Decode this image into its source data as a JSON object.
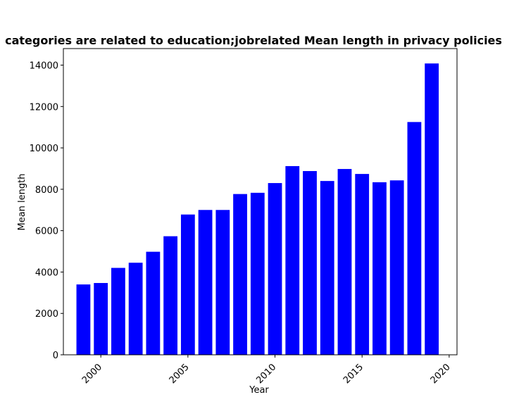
{
  "chart_data": {
    "type": "bar",
    "title": "categories are related to education;jobrelated Mean length in privacy policies",
    "xlabel": "Year",
    "ylabel": "Mean length",
    "bar_color": "#0000ff",
    "x": [
      1999,
      2000,
      2001,
      2002,
      2003,
      2004,
      2005,
      2006,
      2007,
      2008,
      2009,
      2010,
      2011,
      2012,
      2013,
      2014,
      2015,
      2016,
      2017,
      2018,
      2019
    ],
    "values": [
      3400,
      3470,
      4200,
      4450,
      4980,
      5730,
      6780,
      7000,
      7000,
      7770,
      7830,
      8300,
      9120,
      8880,
      8400,
      8980,
      8740,
      8340,
      8430,
      11250,
      14080
    ],
    "xlim": [
      1997.85,
      2020.45
    ],
    "ylim": [
      0,
      14800
    ],
    "xticks": [
      2000,
      2005,
      2010,
      2015,
      2020
    ],
    "xtick_labels": [
      "2000",
      "2005",
      "2010",
      "2015",
      "2020"
    ],
    "yticks": [
      0,
      2000,
      4000,
      6000,
      8000,
      10000,
      12000,
      14000
    ],
    "ytick_labels": [
      "0",
      "2000",
      "4000",
      "6000",
      "8000",
      "10000",
      "12000",
      "14000"
    ],
    "grid": false,
    "legend": "none"
  }
}
